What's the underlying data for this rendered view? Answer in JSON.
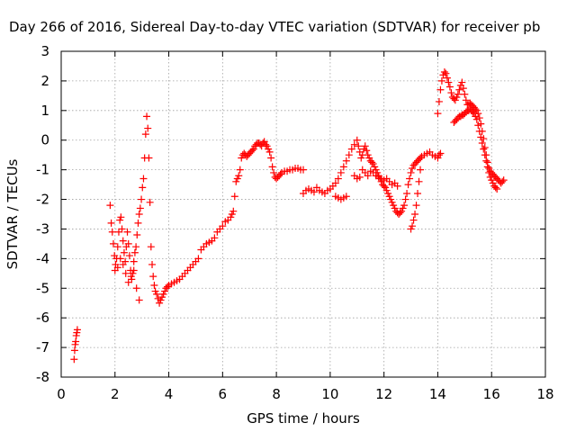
{
  "chart_data": {
    "type": "scatter",
    "title": "Day 266 of 2016, Sidereal Day-to-day VTEC variation (SDTVAR) for receiver pb",
    "xlabel": "GPS time / hours",
    "ylabel": "SDTVAR / TECUs",
    "xlim": [
      0,
      18
    ],
    "ylim": [
      -8,
      3
    ],
    "x_ticks": [
      0,
      2,
      4,
      6,
      8,
      10,
      12,
      14,
      16,
      18
    ],
    "y_ticks": [
      -8,
      -7,
      -6,
      -5,
      -4,
      -3,
      -2,
      -1,
      0,
      1,
      2,
      3
    ],
    "x_tick_labels": [
      "0",
      "2",
      "4",
      "6",
      "8",
      "10",
      "12",
      "14",
      "16",
      "18"
    ],
    "y_tick_labels": [
      "-8",
      "-7",
      "-6",
      "-5",
      "-4",
      "-3",
      "-2",
      "-1",
      "0",
      "1",
      "2",
      "3"
    ],
    "grid": true,
    "marker": "+",
    "color": "#ff0000",
    "series": [
      {
        "x": [
          0.48,
          0.5,
          0.52,
          0.54,
          0.56,
          0.58,
          0.6,
          1.82,
          1.86,
          1.9,
          1.94,
          1.98,
          2.02,
          2.06,
          2.1,
          2.14,
          2.18,
          2.22,
          2.26,
          2.3,
          2.34,
          2.38,
          2.42,
          2.46,
          2.5,
          2.54,
          2.58,
          2.62,
          2.66,
          2.7,
          2.74,
          2.78,
          2.82,
          2.86,
          2.9,
          2.94,
          2.98,
          3.02,
          3.06,
          3.1,
          3.14,
          3.18,
          3.22,
          3.26,
          3.3,
          3.34,
          3.38,
          3.42,
          3.46,
          3.5,
          3.55,
          3.6,
          3.65,
          3.7,
          3.75,
          3.8,
          3.85,
          3.9,
          3.95,
          4.0,
          4.1,
          4.2,
          4.3,
          4.4,
          4.5,
          4.6,
          4.7,
          4.8,
          4.9,
          5.0,
          5.1,
          2.0,
          2.1,
          2.2,
          2.3,
          2.4,
          2.5,
          2.6,
          2.7,
          2.8,
          2.9,
          5.2,
          5.3,
          5.4,
          5.5,
          5.6,
          5.7,
          5.8,
          5.9,
          6.0,
          6.1,
          6.2,
          6.3,
          6.35,
          6.4,
          6.45,
          6.5,
          6.55,
          6.6,
          6.65,
          6.7,
          6.75,
          6.8,
          6.85,
          6.9,
          6.95,
          7.0,
          7.05,
          7.1,
          7.15,
          7.2,
          7.25,
          7.3,
          7.35,
          7.4,
          7.45,
          7.5,
          7.55,
          7.6,
          7.65,
          7.7,
          7.75,
          7.8,
          7.85,
          7.9,
          7.95,
          8.0,
          8.05,
          8.1,
          8.15,
          8.2,
          8.3,
          8.4,
          8.5,
          8.6,
          8.7,
          8.8,
          8.9,
          9.0,
          9.0,
          9.1,
          9.2,
          9.3,
          9.4,
          9.5,
          9.6,
          9.7,
          9.8,
          9.9,
          10.0,
          10.1,
          10.2,
          10.3,
          10.4,
          10.5,
          10.6,
          10.7,
          10.8,
          10.9,
          11.0,
          11.05,
          11.1,
          11.15,
          11.2,
          11.25,
          11.3,
          11.35,
          11.4,
          11.45,
          11.5,
          11.55,
          11.6,
          11.65,
          11.7,
          11.75,
          11.8,
          11.85,
          11.9,
          11.95,
          12.0,
          12.05,
          12.1,
          12.15,
          12.2,
          12.25,
          12.3,
          12.35,
          12.4,
          12.45,
          12.5,
          12.55,
          12.6,
          12.65,
          12.7,
          12.75,
          12.8,
          12.85,
          12.9,
          12.95,
          13.0,
          13.05,
          13.1,
          13.15,
          13.2,
          13.25,
          13.3,
          13.35,
          13.4,
          13.5,
          13.6,
          13.7,
          13.8,
          13.9,
          14.0,
          14.05,
          14.1,
          10.2,
          10.3,
          10.4,
          10.5,
          10.6,
          10.9,
          11.0,
          11.1,
          11.2,
          11.3,
          11.4,
          11.5,
          11.6,
          11.7,
          11.8,
          11.9,
          12.0,
          12.1,
          12.2,
          12.3,
          12.4,
          12.5,
          13.0,
          13.05,
          13.1,
          13.15,
          13.2,
          13.25,
          13.3,
          13.35,
          14.0,
          14.05,
          14.1,
          14.15,
          14.2,
          14.25,
          14.3,
          14.35,
          14.4,
          14.45,
          14.5,
          14.55,
          14.6,
          14.65,
          14.7,
          14.75,
          14.8,
          14.85,
          14.9,
          14.95,
          15.0,
          15.05,
          15.1,
          15.15,
          15.2,
          15.25,
          15.3,
          15.35,
          15.4,
          15.45,
          15.5,
          15.55,
          15.6,
          15.65,
          15.7,
          15.75,
          15.8,
          15.85,
          15.9,
          15.95,
          16.0,
          16.05,
          16.1,
          16.15,
          16.2,
          16.25,
          16.3,
          16.35,
          16.4,
          16.45,
          14.6,
          14.65,
          14.7,
          14.75,
          14.8,
          14.85,
          14.9,
          14.95,
          15.0,
          15.05,
          15.1,
          15.15,
          15.2,
          15.25,
          15.3,
          15.35,
          15.4,
          15.45,
          15.5,
          15.55,
          15.6,
          15.65,
          15.7,
          15.75,
          15.8,
          15.85,
          15.9,
          15.95,
          16.0,
          16.05,
          16.1,
          16.15,
          16.2
        ],
        "y": [
          -7.4,
          -7.1,
          -6.9,
          -6.8,
          -6.6,
          -6.5,
          -6.4,
          -2.2,
          -2.8,
          -3.1,
          -3.5,
          -3.9,
          -4.2,
          -4.0,
          -3.6,
          -3.1,
          -2.7,
          -2.6,
          -3.0,
          -3.4,
          -3.8,
          -4.1,
          -3.6,
          -3.1,
          -3.5,
          -3.9,
          -4.4,
          -4.7,
          -4.5,
          -4.1,
          -3.8,
          -3.6,
          -3.2,
          -2.8,
          -2.5,
          -2.3,
          -2.0,
          -1.6,
          -1.3,
          -0.6,
          0.2,
          0.8,
          0.4,
          -0.6,
          -2.1,
          -3.6,
          -4.2,
          -4.6,
          -4.9,
          -5.1,
          -5.2,
          -5.35,
          -5.5,
          -5.4,
          -5.3,
          -5.2,
          -5.1,
          -5.0,
          -4.95,
          -4.9,
          -4.85,
          -4.8,
          -4.75,
          -4.7,
          -4.6,
          -4.5,
          -4.4,
          -4.3,
          -4.2,
          -4.1,
          -4.0,
          -4.4,
          -4.3,
          -4.0,
          -4.2,
          -4.5,
          -4.8,
          -4.6,
          -4.4,
          -5.0,
          -5.4,
          -3.7,
          -3.6,
          -3.5,
          -3.45,
          -3.4,
          -3.3,
          -3.1,
          -3.0,
          -2.9,
          -2.75,
          -2.7,
          -2.6,
          -2.5,
          -2.4,
          -1.9,
          -1.4,
          -1.3,
          -1.2,
          -1.0,
          -0.6,
          -0.5,
          -0.45,
          -0.5,
          -0.55,
          -0.5,
          -0.45,
          -0.4,
          -0.35,
          -0.3,
          -0.2,
          -0.15,
          -0.1,
          -0.1,
          -0.15,
          -0.2,
          -0.1,
          -0.05,
          -0.15,
          -0.2,
          -0.3,
          -0.4,
          -0.6,
          -0.9,
          -1.1,
          -1.25,
          -1.3,
          -1.25,
          -1.2,
          -1.15,
          -1.1,
          -1.05,
          -1.05,
          -1.0,
          -1.0,
          -0.95,
          -0.95,
          -1.0,
          -1.0,
          -1.8,
          -1.7,
          -1.65,
          -1.7,
          -1.75,
          -1.6,
          -1.7,
          -1.75,
          -1.8,
          -1.7,
          -1.65,
          -1.55,
          -1.45,
          -1.3,
          -1.1,
          -0.9,
          -0.7,
          -0.5,
          -0.3,
          -0.15,
          0.0,
          -0.2,
          -0.4,
          -0.6,
          -0.5,
          -0.3,
          -0.2,
          -0.35,
          -0.5,
          -0.6,
          -0.7,
          -0.75,
          -0.8,
          -0.9,
          -1.0,
          -1.1,
          -1.2,
          -1.3,
          -1.4,
          -1.5,
          -1.55,
          -1.6,
          -1.7,
          -1.8,
          -1.9,
          -2.0,
          -2.1,
          -2.2,
          -2.3,
          -2.4,
          -2.45,
          -2.5,
          -2.45,
          -2.4,
          -2.3,
          -2.2,
          -2.0,
          -1.8,
          -1.5,
          -1.3,
          -1.1,
          -0.95,
          -0.85,
          -0.8,
          -0.75,
          -0.7,
          -0.65,
          -0.6,
          -0.55,
          -0.5,
          -0.45,
          -0.4,
          -0.5,
          -0.55,
          -0.6,
          -0.5,
          -0.45,
          -1.9,
          -1.95,
          -2.0,
          -1.95,
          -1.9,
          -1.2,
          -1.3,
          -1.25,
          -1.0,
          -1.1,
          -1.2,
          -1.05,
          -1.1,
          -1.2,
          -1.25,
          -1.3,
          -1.35,
          -1.3,
          -1.4,
          -1.5,
          -1.45,
          -1.55,
          -3.0,
          -2.9,
          -2.7,
          -2.5,
          -2.2,
          -1.8,
          -1.4,
          -1.0,
          0.9,
          1.3,
          1.7,
          2.0,
          2.2,
          2.3,
          2.25,
          2.1,
          1.95,
          1.8,
          1.6,
          1.45,
          1.4,
          1.35,
          1.45,
          1.55,
          1.7,
          1.85,
          1.95,
          1.75,
          1.55,
          1.35,
          1.2,
          1.2,
          1.25,
          1.2,
          1.15,
          1.1,
          1.05,
          1.0,
          0.9,
          0.75,
          0.55,
          0.3,
          0.05,
          -0.25,
          -0.5,
          -0.75,
          -0.95,
          -1.05,
          -1.1,
          -1.15,
          -1.2,
          -1.25,
          -1.3,
          -1.35,
          -1.4,
          -1.45,
          -1.4,
          -1.35,
          0.6,
          0.65,
          0.7,
          0.75,
          0.8,
          0.8,
          0.85,
          0.85,
          0.9,
          0.95,
          1.0,
          1.0,
          1.05,
          1.0,
          0.95,
          0.9,
          0.8,
          0.7,
          0.5,
          0.3,
          0.1,
          -0.1,
          -0.3,
          -0.5,
          -0.7,
          -0.9,
          -1.1,
          -1.25,
          -1.35,
          -1.45,
          -1.55,
          -1.6,
          -1.65
        ]
      }
    ]
  }
}
